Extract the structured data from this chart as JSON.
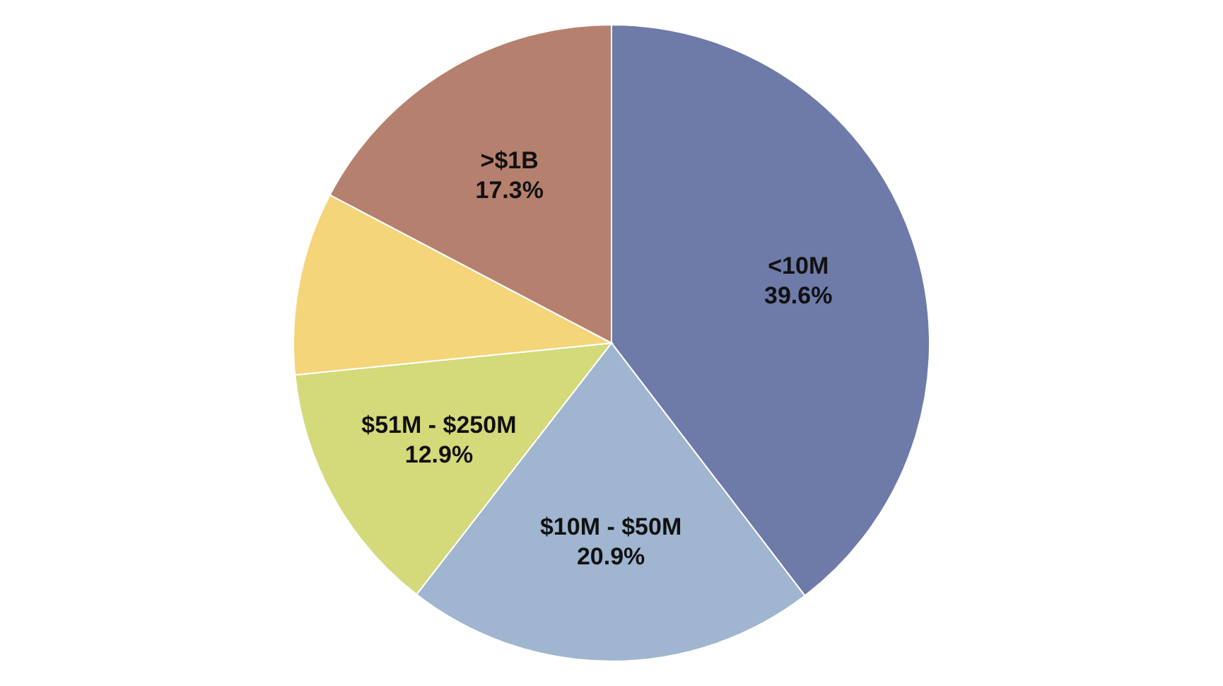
{
  "chart_data": {
    "type": "pie",
    "categories": [
      "<10M",
      "$10M - $50M",
      "$51M - $250M",
      null,
      ">$1B"
    ],
    "values": [
      39.6,
      20.9,
      12.9,
      9.3,
      17.3
    ],
    "colors": [
      "#6e7aa8",
      "#9fb5d0",
      "#d4d97a",
      "#f5d57a",
      "#b6806e"
    ],
    "value_labels": [
      "39.6%",
      "20.9%",
      "12.9%",
      null,
      "17.3%"
    ]
  }
}
